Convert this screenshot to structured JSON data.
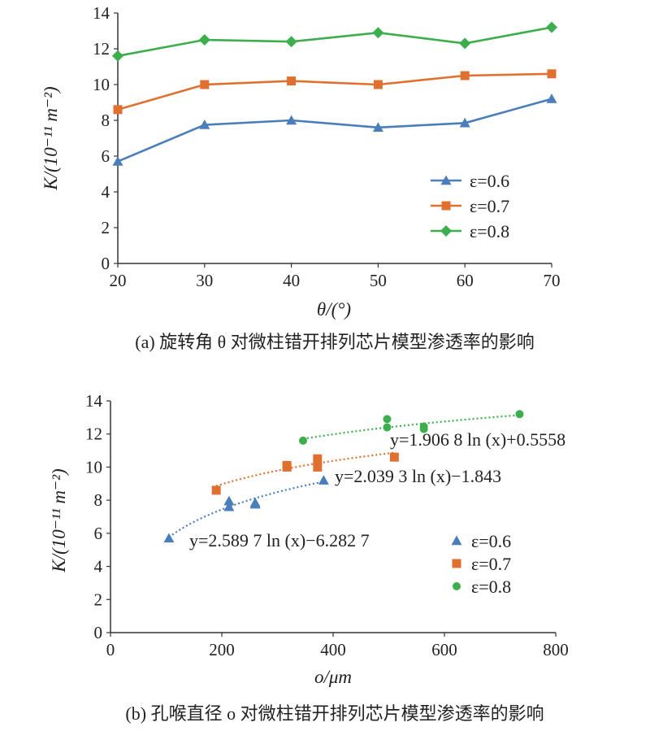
{
  "chart_data": [
    {
      "type": "line",
      "ylabel": "K/(10⁻¹¹ m⁻²)",
      "xlabel": "θ/(°)",
      "caption": "(a) 旋转角 θ 对微柱错开排列芯片模型渗透率的影响",
      "x": [
        20,
        30,
        40,
        50,
        60,
        70
      ],
      "xlim": [
        20,
        70
      ],
      "ylim": [
        0,
        14
      ],
      "xticks": [
        "20",
        "30",
        "40",
        "50",
        "60",
        "70"
      ],
      "yticks": [
        "0",
        "2",
        "4",
        "6",
        "8",
        "10",
        "12",
        "14"
      ],
      "legend_position": "right",
      "series": [
        {
          "name": "ε=0.6",
          "color": "#4a7ebb",
          "marker": "triangle",
          "values": [
            5.7,
            7.75,
            8.0,
            7.6,
            7.85,
            9.2
          ]
        },
        {
          "name": "ε=0.7",
          "color": "#e07030",
          "marker": "square",
          "values": [
            8.6,
            10.0,
            10.2,
            10.0,
            10.5,
            10.6
          ]
        },
        {
          "name": "ε=0.8",
          "color": "#3cae4c",
          "marker": "diamond",
          "values": [
            11.6,
            12.5,
            12.4,
            12.9,
            12.3,
            13.2
          ]
        }
      ]
    },
    {
      "type": "scatter",
      "ylabel": "K/(10⁻¹¹ m⁻²)",
      "xlabel": "o/μm",
      "caption": "(b) 孔喉直径 o 对微柱错开排列芯片模型渗透率的影响",
      "xlim": [
        0,
        800
      ],
      "ylim": [
        0,
        14
      ],
      "xticks": [
        "0",
        "200",
        "400",
        "600",
        "800"
      ],
      "yticks": [
        "0",
        "2",
        "4",
        "6",
        "8",
        "10",
        "12",
        "14"
      ],
      "legend_position": "right",
      "series": [
        {
          "name": "ε=0.6",
          "color": "#4a7ebb",
          "marker": "triangle",
          "points": [
            [
              105,
              5.7
            ],
            [
              213,
              7.95
            ],
            [
              213,
              7.6
            ],
            [
              260,
              7.85
            ],
            [
              260,
              7.75
            ],
            [
              383,
              9.2
            ]
          ],
          "trend": {
            "a": 2.5897,
            "b": -6.2827,
            "from": 105,
            "to": 383
          },
          "equation": "y=2.589 7 ln (x)−6.282 7"
        },
        {
          "name": "ε=0.7",
          "color": "#e07030",
          "marker": "square",
          "points": [
            [
              190,
              8.6
            ],
            [
              317,
              10.1
            ],
            [
              317,
              10.0
            ],
            [
              372,
              10.5
            ],
            [
              372,
              10.0
            ],
            [
              510,
              10.6
            ]
          ],
          "trend": {
            "a": 2.0393,
            "b": -1.843,
            "from": 190,
            "to": 510
          },
          "equation": "y=2.039 3 ln (x)−1.843"
        },
        {
          "name": "ε=0.8",
          "color": "#3cae4c",
          "marker": "circle",
          "points": [
            [
              346,
              11.6
            ],
            [
              497,
              12.9
            ],
            [
              497,
              12.4
            ],
            [
              563,
              12.45
            ],
            [
              563,
              12.3
            ],
            [
              735,
              13.2
            ]
          ],
          "trend": {
            "a": 1.9068,
            "b": 0.5558,
            "from": 346,
            "to": 735
          },
          "equation": "y=1.906 8 ln (x)+0.5558"
        }
      ]
    }
  ]
}
